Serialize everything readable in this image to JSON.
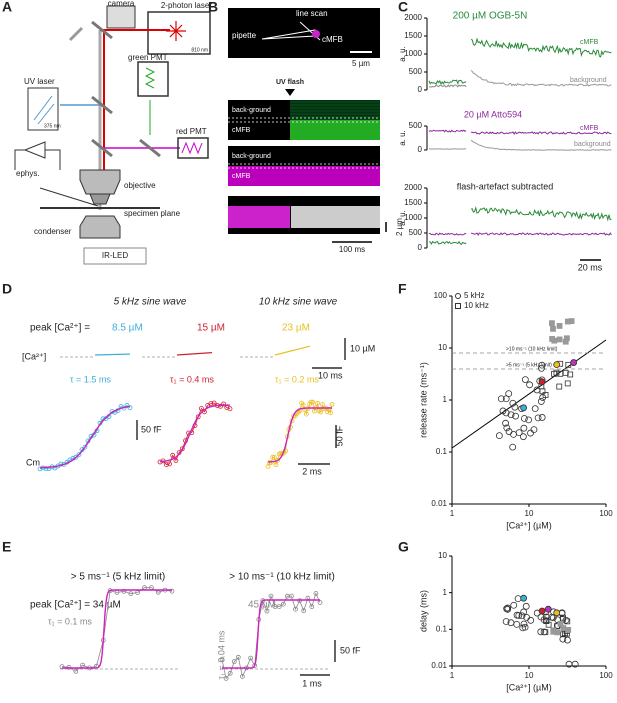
{
  "A": {
    "label": "A",
    "camera": "camera",
    "laser2p": "2-photon laser",
    "laser2p_wl": "810 nm",
    "uv": "UV laser",
    "uv_wl": "375 nm",
    "green_pmt": "green PMT",
    "red_pmt": "red PMT",
    "ephys": "ephys.",
    "objective": "objective",
    "specimen": "specimen plane",
    "condenser": "condenser",
    "led": "IR-LED"
  },
  "B": {
    "label": "B",
    "linescan": "line scan",
    "pipette": "pipette",
    "cmfb": "cMFB",
    "scale_um": "5 µm",
    "uvflash": "UV flash",
    "bg1": "back-ground",
    "cmfb1": "cMFB",
    "bg2": "back-ground",
    "cmfb2": "cMFB",
    "scale_v": "2 µm",
    "scale_t": "100 ms"
  },
  "C": {
    "label": "C",
    "title1": "200 µM OGB-5N",
    "ylabel1": "a. u.",
    "yticks1": [
      "2000",
      "1500",
      "1000",
      "500",
      "0"
    ],
    "cmfb1": "cMFB",
    "bg1": "background",
    "title2": "20 µM Atto594",
    "ylabel2": "a. u.",
    "yticks2": [
      "500",
      "0"
    ],
    "cmfb2": "cMFB",
    "bg2": "background",
    "title3": "flash-artefact subtracted",
    "ylabel3": "a. u.",
    "yticks3": [
      "2000",
      "1500",
      "1000",
      "500",
      "0"
    ],
    "scale_t": "20 ms"
  },
  "D": {
    "label": "D",
    "head1": "5 kHz  sine wave",
    "head2": "10 kHz  sine wave",
    "peak": "peak [Ca²⁺] = ",
    "ca1": "8.5 µM",
    "ca2": "15 µM",
    "ca3": "23 µM",
    "ca_label": "[Ca²⁺]",
    "scale_ca": "10 µM",
    "scale_t1": "10 ms",
    "tau1": "τ = 1.5 ms",
    "tau2": "τ₁ = 0.4 ms",
    "tau3": "τ₁ = 0.2 ms",
    "scale_ff1": "50 fF",
    "scale_ff2": "50 fF",
    "cm": "Cm",
    "scale_t2": "2 ms"
  },
  "E": {
    "label": "E",
    "head1": "> 5 ms⁻¹ (5 kHz limit)",
    "head2": "> 10 ms⁻¹ (10 kHz limit)",
    "peak": "peak [Ca²⁺] = 34 µM",
    "ca2": "45 µM",
    "tau1": "τ₁ = 0.1 ms",
    "tau2": "τ₁ = 0.04 ms",
    "scale_ff": "50 fF",
    "scale_t": "1 ms"
  },
  "F": {
    "label": "F",
    "legend1": "5 kHz",
    "legend2": "10 kHz",
    "ylabel": "release rate (ms⁻¹)",
    "xlabel": "[Ca²⁺] (µM)",
    "yticks": [
      "100",
      "10",
      "1",
      "0.1",
      "0.01"
    ],
    "xticks": [
      "1",
      "10",
      "100"
    ],
    "limit10": ">10 ms⁻¹ (10 kHz limit)",
    "limit5": ">5 ms⁻¹ (5 kHz limit)"
  },
  "G": {
    "label": "G",
    "ylabel": "delay (ms)",
    "xlabel": "[Ca²⁺] (µM)",
    "yticks": [
      "10",
      "1",
      "0.1",
      "0.01"
    ],
    "xticks": [
      "1",
      "10",
      "100"
    ]
  }
}
